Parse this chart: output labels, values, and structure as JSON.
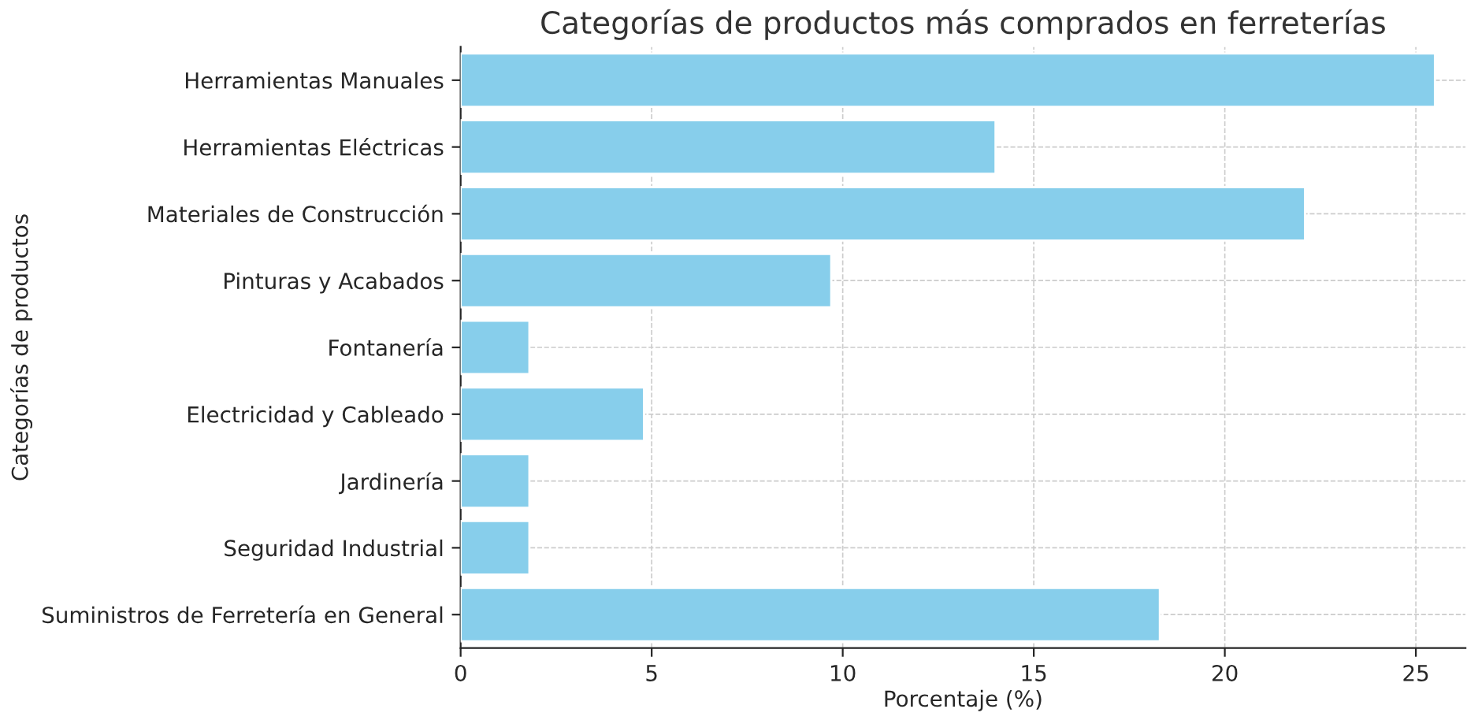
{
  "chart_data": {
    "type": "bar",
    "orientation": "horizontal",
    "title": "Categorías de productos más comprados en ferreterías",
    "xlabel": "Porcentaje (%)",
    "ylabel": "Categorías de productos",
    "categories": [
      "Herramientas Manuales",
      "Herramientas Eléctricas",
      "Materiales de Construcción",
      "Pinturas y Acabados",
      "Fontanería",
      "Electricidad y Cableado",
      "Jardinería",
      "Seguridad Industrial",
      "Suministros de Ferretería en General"
    ],
    "values": [
      25.5,
      14,
      22.1,
      9.7,
      1.8,
      4.8,
      1.8,
      1.8,
      18.3
    ],
    "color": "#87ceeb",
    "xlim": [
      0,
      26.3
    ],
    "xticks": [
      0,
      5,
      10,
      15,
      20,
      25
    ],
    "grid": true
  }
}
